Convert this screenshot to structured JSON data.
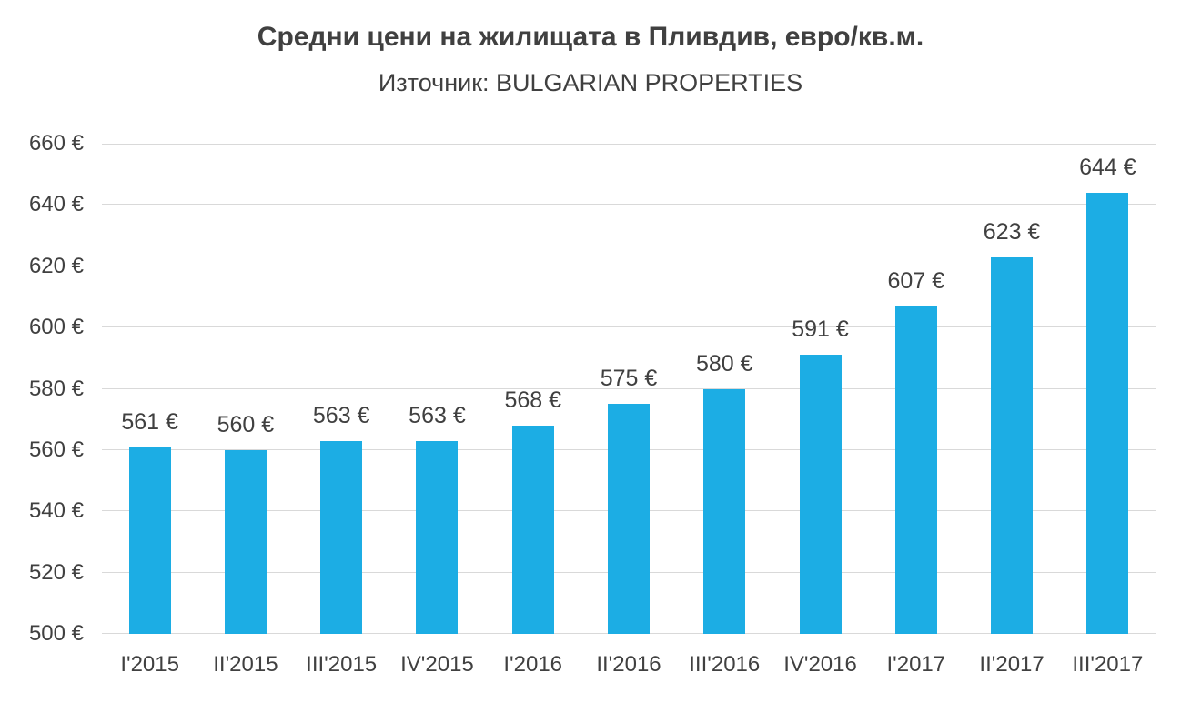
{
  "chart_data": {
    "type": "bar",
    "title": "Средни цени на жилищата в Пливдив, евро/кв.м.",
    "subtitle": "Източник: BULGARIAN PROPERTIES",
    "categories": [
      "I'2015",
      "II'2015",
      "III'2015",
      "IV'2015",
      "I'2016",
      "II'2016",
      "III'2016",
      "IV'2016",
      "I'2017",
      "II'2017",
      "III'2017"
    ],
    "values": [
      561,
      560,
      563,
      563,
      568,
      575,
      580,
      591,
      607,
      623,
      644
    ],
    "data_labels": [
      "561 €",
      "560 €",
      "563 €",
      "563 €",
      "568 €",
      "575 €",
      "580 €",
      "591 €",
      "607 €",
      "623 €",
      "644 €"
    ],
    "xlabel": "",
    "ylabel": "",
    "ylim": [
      500,
      660
    ],
    "ytick_step": 20,
    "ytick_labels": [
      "500 €",
      "520 €",
      "540 €",
      "560 €",
      "580 €",
      "600 €",
      "620 €",
      "640 €",
      "660 €"
    ],
    "grid": true,
    "legend": "none",
    "colors": {
      "bar": "#1CADE4",
      "grid": "#D9D9D9",
      "text": "#404040",
      "background": "#FFFFFF"
    }
  }
}
